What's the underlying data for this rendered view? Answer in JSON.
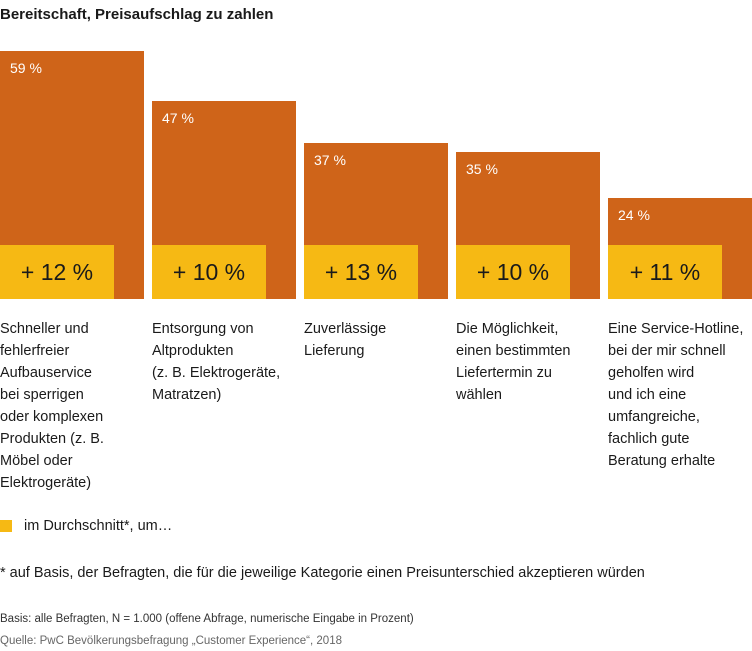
{
  "chart_data": {
    "type": "bar",
    "title": "Bereitschaft, Preisaufschlag zu zahlen",
    "categories": [
      "Schneller und fehlerfreier Aufbauservice bei sperrigen oder komplexen Produkten (z. B. Möbel oder Elektrogeräte)",
      "Entsorgung von Altprodukten (z. B. Elektrogeräte, Matratzen)",
      "Zuverlässige Lieferung",
      "Die Möglichkeit, einen bestimmten Liefertermin zu wählen",
      "Eine Service-Hotline, bei der mir schnell geholfen wird und ich eine umfangreiche, fachlich gute Beratung erhalte"
    ],
    "category_lines": [
      [
        "Schneller und",
        "fehlerfreier",
        "Aufbauservice",
        "bei sperrigen",
        "oder komplexen",
        "Produkten (z. B.",
        "Möbel oder",
        "Elektrogeräte)"
      ],
      [
        "Entsorgung von",
        "Altprodukten",
        "(z. B. Elektrogeräte,",
        "Matratzen)"
      ],
      [
        "Zuverlässige",
        "Lieferung"
      ],
      [
        "Die Möglichkeit,",
        "einen bestimmten",
        "Liefertermin zu",
        "wählen"
      ],
      [
        "Eine Service-Hotline,",
        "bei der mir schnell",
        "geholfen wird",
        "und ich eine",
        "umfangreiche,",
        "fachlich gute",
        "Beratung erhalte"
      ]
    ],
    "series": [
      {
        "name": "Bereitschaft",
        "values": [
          59,
          47,
          37,
          35,
          24
        ],
        "labels": [
          "59 %",
          "47 %",
          "37 %",
          "35 %",
          "24 %"
        ],
        "color": "#cf6419"
      },
      {
        "name": "im Durchschnitt*, um…",
        "values": [
          12,
          10,
          13,
          10,
          11
        ],
        "labels": [
          "+ 12 %",
          "+ 10 %",
          "+ 13 %",
          "+ 10 %",
          "+ 11 %"
        ],
        "color": "#f6b914"
      }
    ],
    "ylim": [
      0,
      59
    ],
    "xlabel": "",
    "ylabel": ""
  },
  "legend": {
    "label": "im Durchschnitt*, um…"
  },
  "footnote": "* auf Basis, der Befragten, die für die jeweilige Kategorie einen Preisunterschied akzeptieren würden",
  "basis": "Basis: alle Befragten, N = 1.000 (offene Abfrage, numerische Eingabe in Prozent)",
  "source": "Quelle: PwC Bevölkerungsbefragung „Customer Experience“, 2018"
}
